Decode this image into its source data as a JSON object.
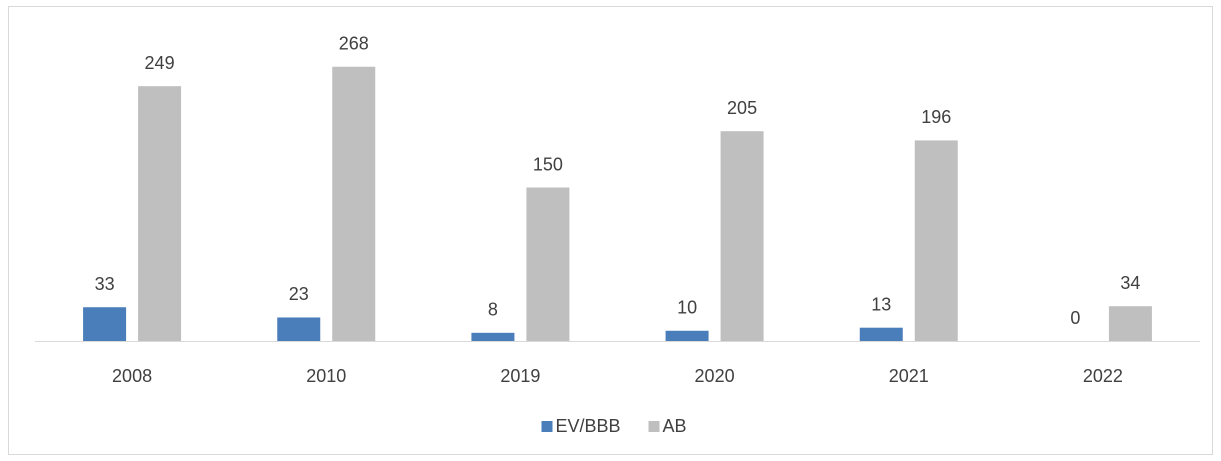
{
  "chart_data": {
    "type": "bar",
    "categories": [
      "2008",
      "2010",
      "2019",
      "2020",
      "2021",
      "2022"
    ],
    "series": [
      {
        "name": "EV/BBB",
        "color": "#4a7ebb",
        "values": [
          33,
          23,
          8,
          10,
          13,
          0
        ]
      },
      {
        "name": "AB",
        "color": "#bfbfbf",
        "values": [
          249,
          268,
          150,
          205,
          196,
          34
        ]
      }
    ],
    "ylim": [
      0,
      300
    ],
    "legend": "bottom"
  }
}
